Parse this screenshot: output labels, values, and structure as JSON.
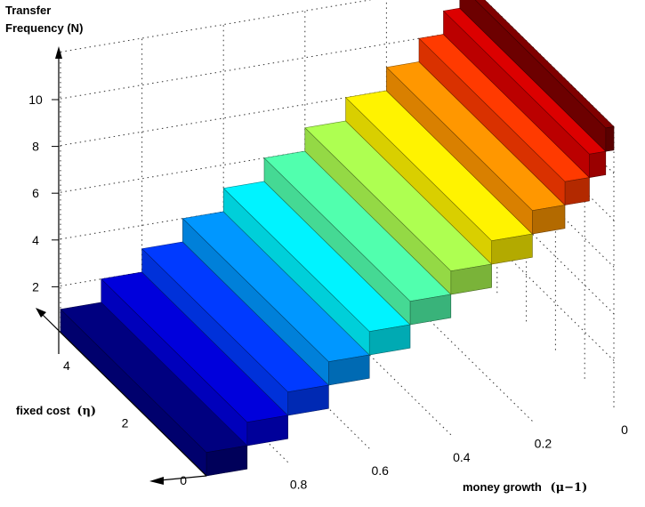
{
  "chart_data": {
    "type": "surface",
    "zlabel_line1": "Transfer",
    "zlabel_line2": "Frequency (N)",
    "xlabel_text": "money growth",
    "xlabel_symbol": "(μ−1)",
    "ylabel_text": "fixed cost",
    "ylabel_symbol": "(η)",
    "z_ticks": [
      "2",
      "4",
      "6",
      "8",
      "10"
    ],
    "x_ticks": [
      "0.8",
      "0.6",
      "0.4",
      "0.2",
      "0"
    ],
    "y_ticks": [
      "0",
      "2",
      "4"
    ],
    "xlim": [
      0,
      1
    ],
    "ylim": [
      0,
      5
    ],
    "zlim": [
      0,
      12
    ],
    "grid": true,
    "colormap": "jet",
    "levels": [
      {
        "money_growth_max": 1.0,
        "n": 1
      },
      {
        "money_growth_max": 0.9,
        "n": 2
      },
      {
        "money_growth_max": 0.8,
        "n": 3
      },
      {
        "money_growth_max": 0.7,
        "n": 4
      },
      {
        "money_growth_max": 0.6,
        "n": 5
      },
      {
        "money_growth_max": 0.5,
        "n": 6
      },
      {
        "money_growth_max": 0.4,
        "n": 7
      },
      {
        "money_growth_max": 0.3,
        "n": 8
      },
      {
        "money_growth_max": 0.2,
        "n": 9
      },
      {
        "money_growth_max": 0.12,
        "n": 10
      },
      {
        "money_growth_max": 0.06,
        "n": 11
      },
      {
        "money_growth_max": 0.02,
        "n": 12
      }
    ]
  }
}
